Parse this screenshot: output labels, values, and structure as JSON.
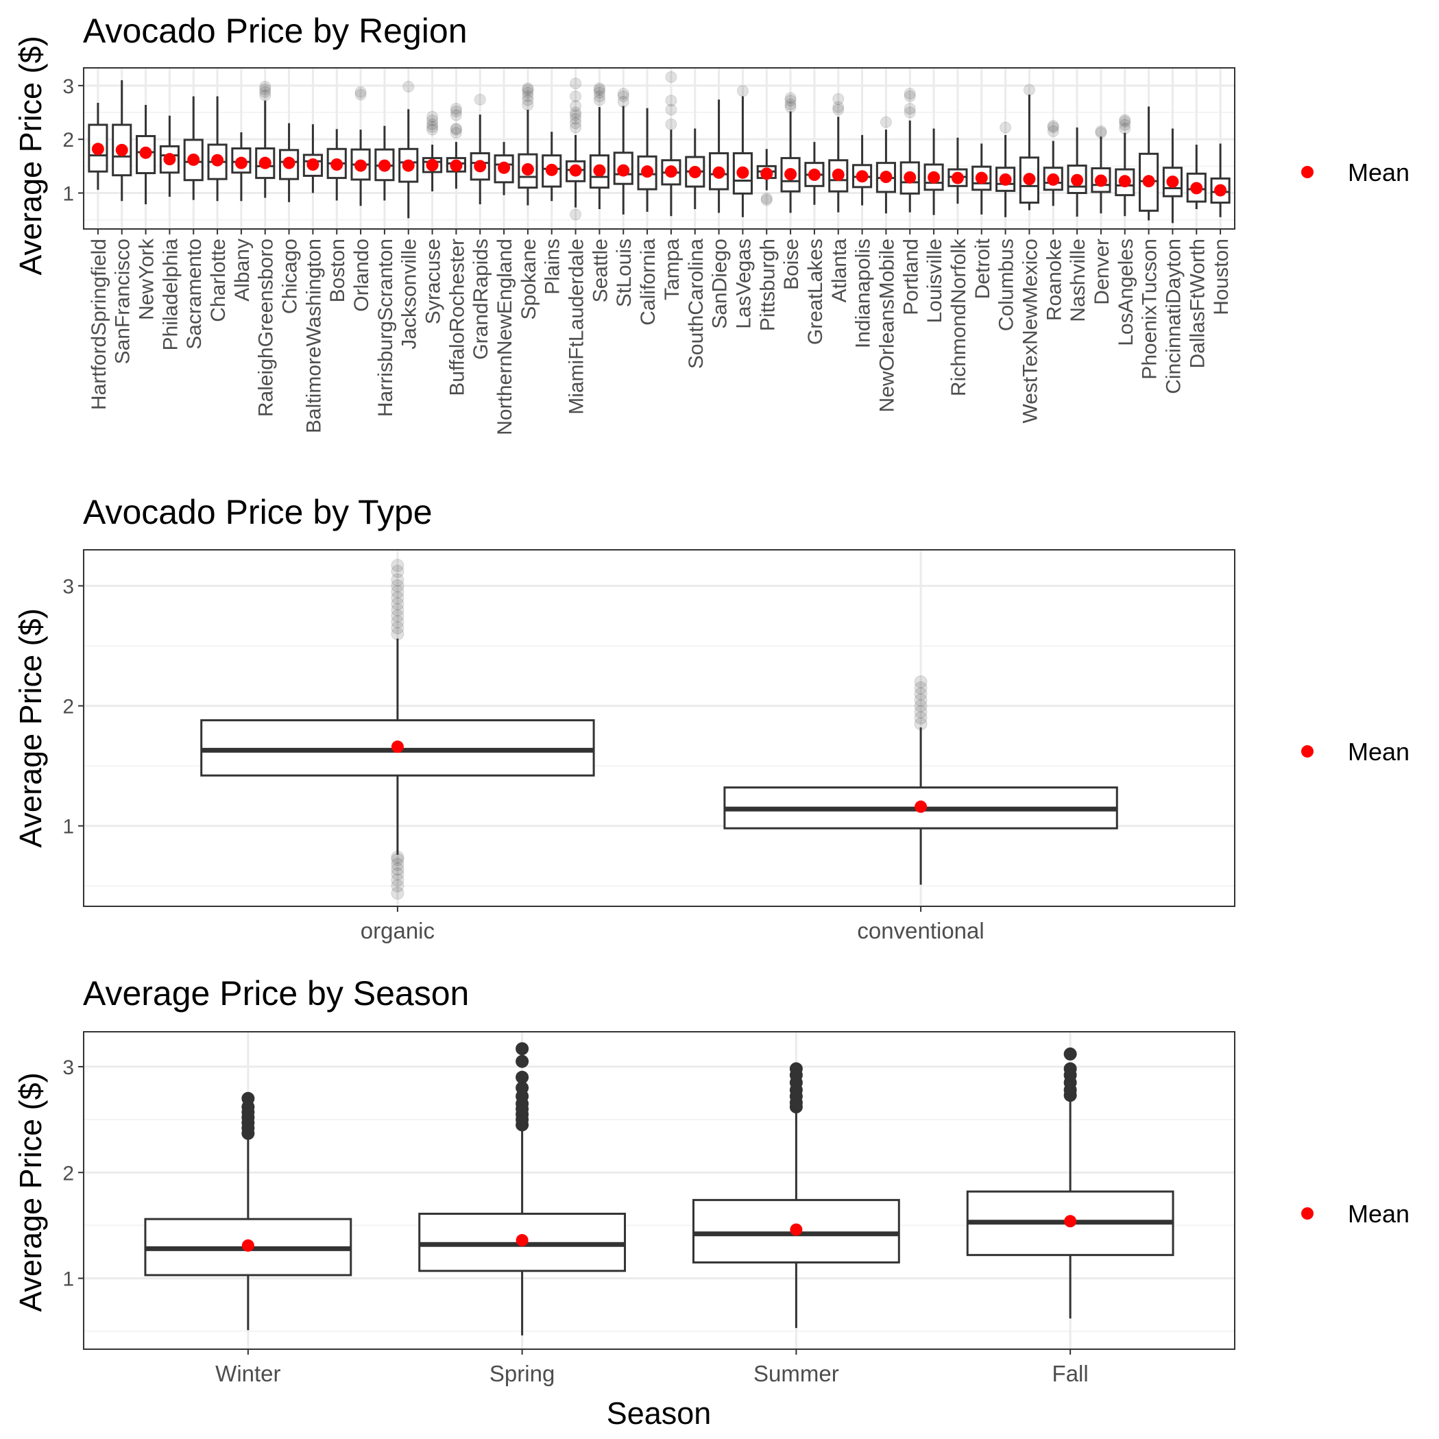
{
  "colors": {
    "panel_border": "#333333",
    "grid_major": "#ebebeb",
    "grid_minor": "#f4f4f4",
    "box_stroke": "#333333",
    "mean_point": "#ff0000",
    "tick_text": "#4d4d4d",
    "title_text": "#000000"
  },
  "legend": {
    "label": "Mean",
    "icon": "red-dot-icon"
  },
  "chart_data": [
    {
      "type": "boxplot",
      "title": "Avocado Price by Region",
      "ylabel": "Average Price ($)",
      "xlabel": "",
      "ylim": [
        0.33,
        3.33
      ],
      "yticks": [
        1,
        2,
        3
      ],
      "grid": true,
      "legend_position": "right",
      "outlier_style": "translucent",
      "x_tick_rotation": "vertical",
      "series": [
        {
          "name": "Mean"
        }
      ],
      "categories": [
        "HartfordSpringfield",
        "SanFrancisco",
        "NewYork",
        "Philadelphia",
        "Sacramento",
        "Charlotte",
        "Albany",
        "RaleighGreensboro",
        "Chicago",
        "BaltimoreWashington",
        "Boston",
        "Orlando",
        "HarrisburgScranton",
        "Jacksonville",
        "Syracuse",
        "BuffaloRochester",
        "GrandRapids",
        "NorthernNewEngland",
        "Spokane",
        "Plains",
        "MiamiFtLauderdale",
        "Seattle",
        "StLouis",
        "California",
        "Tampa",
        "SouthCarolina",
        "SanDiego",
        "LasVegas",
        "Pittsburgh",
        "Boise",
        "GreatLakes",
        "Atlanta",
        "Indianapolis",
        "NewOrleansMobile",
        "Portland",
        "Louisville",
        "RichmondNorfolk",
        "Detroit",
        "Columbus",
        "WestTexNewMexico",
        "Roanoke",
        "Nashville",
        "Denver",
        "LosAngeles",
        "PhoenixTucson",
        "CincinnatiDayton",
        "DallasFtWorth",
        "Houston"
      ],
      "boxes": [
        {
          "min": 1.06,
          "q1": 1.4,
          "median": 1.7,
          "q3": 2.27,
          "max": 2.68,
          "mean": 1.82,
          "outliers": []
        },
        {
          "min": 0.85,
          "q1": 1.33,
          "median": 1.68,
          "q3": 2.27,
          "max": 3.1,
          "mean": 1.8,
          "outliers": []
        },
        {
          "min": 0.79,
          "q1": 1.37,
          "median": 1.76,
          "q3": 2.06,
          "max": 2.64,
          "mean": 1.75,
          "outliers": []
        },
        {
          "min": 0.93,
          "q1": 1.38,
          "median": 1.7,
          "q3": 1.87,
          "max": 2.44,
          "mean": 1.63,
          "outliers": []
        },
        {
          "min": 0.87,
          "q1": 1.24,
          "median": 1.58,
          "q3": 1.99,
          "max": 2.8,
          "mean": 1.62,
          "outliers": []
        },
        {
          "min": 0.85,
          "q1": 1.26,
          "median": 1.58,
          "q3": 1.9,
          "max": 2.8,
          "mean": 1.61,
          "outliers": []
        },
        {
          "min": 0.85,
          "q1": 1.38,
          "median": 1.58,
          "q3": 1.83,
          "max": 2.13,
          "mean": 1.56,
          "outliers": []
        },
        {
          "min": 0.91,
          "q1": 1.28,
          "median": 1.5,
          "q3": 1.83,
          "max": 2.72,
          "mean": 1.56,
          "outliers": [
            2.82,
            2.88,
            2.93,
            2.98
          ]
        },
        {
          "min": 0.83,
          "q1": 1.26,
          "median": 1.58,
          "q3": 1.8,
          "max": 2.3,
          "mean": 1.56,
          "outliers": []
        },
        {
          "min": 1.0,
          "q1": 1.32,
          "median": 1.59,
          "q3": 1.71,
          "max": 2.28,
          "mean": 1.53,
          "outliers": []
        },
        {
          "min": 0.86,
          "q1": 1.28,
          "median": 1.55,
          "q3": 1.82,
          "max": 2.19,
          "mean": 1.53,
          "outliers": []
        },
        {
          "min": 0.76,
          "q1": 1.25,
          "median": 1.53,
          "q3": 1.81,
          "max": 2.18,
          "mean": 1.51,
          "outliers": [
            2.83,
            2.88
          ]
        },
        {
          "min": 0.86,
          "q1": 1.24,
          "median": 1.51,
          "q3": 1.81,
          "max": 2.25,
          "mean": 1.51,
          "outliers": []
        },
        {
          "min": 0.53,
          "q1": 1.21,
          "median": 1.57,
          "q3": 1.82,
          "max": 2.56,
          "mean": 1.51,
          "outliers": [
            2.98
          ]
        },
        {
          "min": 1.03,
          "q1": 1.39,
          "median": 1.58,
          "q3": 1.65,
          "max": 1.9,
          "mean": 1.52,
          "outliers": [
            2.18,
            2.23,
            2.28,
            2.35,
            2.42
          ]
        },
        {
          "min": 1.08,
          "q1": 1.4,
          "median": 1.55,
          "q3": 1.65,
          "max": 1.95,
          "mean": 1.51,
          "outliers": [
            2.12,
            2.18,
            2.2,
            2.45,
            2.52,
            2.57
          ]
        },
        {
          "min": 0.79,
          "q1": 1.25,
          "median": 1.56,
          "q3": 1.74,
          "max": 2.46,
          "mean": 1.5,
          "outliers": [
            2.74
          ]
        },
        {
          "min": 0.96,
          "q1": 1.2,
          "median": 1.53,
          "q3": 1.7,
          "max": 1.95,
          "mean": 1.47,
          "outliers": []
        },
        {
          "min": 0.77,
          "q1": 1.1,
          "median": 1.3,
          "q3": 1.72,
          "max": 2.55,
          "mean": 1.44,
          "outliers": [
            2.64,
            2.73,
            2.8,
            2.87,
            2.92,
            2.95
          ]
        },
        {
          "min": 0.85,
          "q1": 1.12,
          "median": 1.45,
          "q3": 1.7,
          "max": 2.14,
          "mean": 1.43,
          "outliers": []
        },
        {
          "min": 0.73,
          "q1": 1.22,
          "median": 1.43,
          "q3": 1.59,
          "max": 2.08,
          "mean": 1.42,
          "outliers": [
            0.6,
            2.22,
            2.3,
            2.38,
            2.45,
            2.5,
            2.62,
            2.8,
            3.04
          ]
        },
        {
          "min": 0.7,
          "q1": 1.1,
          "median": 1.3,
          "q3": 1.7,
          "max": 2.6,
          "mean": 1.42,
          "outliers": [
            2.73,
            2.8,
            2.87,
            2.92,
            2.95
          ]
        },
        {
          "min": 0.6,
          "q1": 1.17,
          "median": 1.35,
          "q3": 1.75,
          "max": 2.62,
          "mean": 1.42,
          "outliers": [
            2.7,
            2.8,
            2.85
          ]
        },
        {
          "min": 0.65,
          "q1": 1.07,
          "median": 1.35,
          "q3": 1.68,
          "max": 2.58,
          "mean": 1.4,
          "outliers": []
        },
        {
          "min": 0.57,
          "q1": 1.16,
          "median": 1.38,
          "q3": 1.61,
          "max": 2.18,
          "mean": 1.4,
          "outliers": [
            2.28,
            2.55,
            2.72,
            3.16
          ]
        },
        {
          "min": 0.7,
          "q1": 1.12,
          "median": 1.4,
          "q3": 1.67,
          "max": 2.2,
          "mean": 1.39,
          "outliers": []
        },
        {
          "min": 0.63,
          "q1": 1.07,
          "median": 1.35,
          "q3": 1.74,
          "max": 2.74,
          "mean": 1.38,
          "outliers": []
        },
        {
          "min": 0.55,
          "q1": 0.99,
          "median": 1.23,
          "q3": 1.74,
          "max": 2.8,
          "mean": 1.38,
          "outliers": [
            2.9
          ]
        },
        {
          "min": 1.05,
          "q1": 1.28,
          "median": 1.4,
          "q3": 1.5,
          "max": 1.82,
          "mean": 1.36,
          "outliers": [
            0.87,
            0.9
          ]
        },
        {
          "min": 0.63,
          "q1": 1.03,
          "median": 1.22,
          "q3": 1.65,
          "max": 2.52,
          "mean": 1.35,
          "outliers": [
            2.6,
            2.65,
            2.72,
            2.77
          ]
        },
        {
          "min": 0.78,
          "q1": 1.13,
          "median": 1.34,
          "q3": 1.56,
          "max": 1.95,
          "mean": 1.34,
          "outliers": []
        },
        {
          "min": 0.64,
          "q1": 1.03,
          "median": 1.24,
          "q3": 1.61,
          "max": 2.42,
          "mean": 1.34,
          "outliers": [
            2.55,
            2.6,
            2.75
          ]
        },
        {
          "min": 0.77,
          "q1": 1.11,
          "median": 1.3,
          "q3": 1.52,
          "max": 2.08,
          "mean": 1.31,
          "outliers": []
        },
        {
          "min": 0.62,
          "q1": 1.02,
          "median": 1.28,
          "q3": 1.56,
          "max": 2.18,
          "mean": 1.3,
          "outliers": [
            2.32
          ]
        },
        {
          "min": 0.64,
          "q1": 0.99,
          "median": 1.2,
          "q3": 1.57,
          "max": 2.35,
          "mean": 1.29,
          "outliers": [
            2.5,
            2.57,
            2.8,
            2.85
          ]
        },
        {
          "min": 0.59,
          "q1": 1.06,
          "median": 1.19,
          "q3": 1.53,
          "max": 2.2,
          "mean": 1.29,
          "outliers": []
        },
        {
          "min": 0.8,
          "q1": 1.13,
          "median": 1.3,
          "q3": 1.44,
          "max": 2.03,
          "mean": 1.28,
          "outliers": []
        },
        {
          "min": 0.6,
          "q1": 1.06,
          "median": 1.18,
          "q3": 1.49,
          "max": 1.92,
          "mean": 1.28,
          "outliers": []
        },
        {
          "min": 0.55,
          "q1": 1.04,
          "median": 1.17,
          "q3": 1.47,
          "max": 2.08,
          "mean": 1.25,
          "outliers": [
            2.22
          ]
        },
        {
          "min": 0.68,
          "q1": 0.82,
          "median": 1.13,
          "q3": 1.66,
          "max": 2.83,
          "mean": 1.26,
          "outliers": [
            2.92
          ]
        },
        {
          "min": 0.76,
          "q1": 1.06,
          "median": 1.19,
          "q3": 1.47,
          "max": 1.97,
          "mean": 1.25,
          "outliers": [
            2.15,
            2.22,
            2.25
          ]
        },
        {
          "min": 0.56,
          "q1": 1.0,
          "median": 1.12,
          "q3": 1.51,
          "max": 2.22,
          "mean": 1.24,
          "outliers": []
        },
        {
          "min": 0.62,
          "q1": 1.02,
          "median": 1.15,
          "q3": 1.46,
          "max": 2.05,
          "mean": 1.23,
          "outliers": [
            2.12,
            2.15
          ]
        },
        {
          "min": 0.57,
          "q1": 0.96,
          "median": 1.14,
          "q3": 1.44,
          "max": 2.12,
          "mean": 1.22,
          "outliers": [
            2.2,
            2.27,
            2.33,
            2.36
          ]
        },
        {
          "min": 0.49,
          "q1": 0.67,
          "median": 1.22,
          "q3": 1.73,
          "max": 2.61,
          "mean": 1.22,
          "outliers": []
        },
        {
          "min": 0.44,
          "q1": 0.94,
          "median": 1.09,
          "q3": 1.47,
          "max": 2.2,
          "mean": 1.21,
          "outliers": []
        },
        {
          "min": 0.7,
          "q1": 0.84,
          "median": 1.07,
          "q3": 1.36,
          "max": 1.9,
          "mean": 1.09,
          "outliers": []
        },
        {
          "min": 0.55,
          "q1": 0.82,
          "median": 1.02,
          "q3": 1.27,
          "max": 1.92,
          "mean": 1.05,
          "outliers": []
        }
      ]
    },
    {
      "type": "boxplot",
      "title": "Avocado Price by Type",
      "ylabel": "Average Price ($)",
      "xlabel": "",
      "ylim": [
        0.33,
        3.3
      ],
      "yticks": [
        1,
        2,
        3
      ],
      "grid": true,
      "legend_position": "right",
      "outlier_style": "translucent",
      "x_tick_rotation": "horizontal",
      "series": [
        {
          "name": "Mean"
        }
      ],
      "categories": [
        "organic",
        "conventional"
      ],
      "boxes": [
        {
          "min": 0.76,
          "q1": 1.42,
          "median": 1.63,
          "q3": 1.88,
          "max": 2.56,
          "mean": 1.66,
          "outliers": [
            0.44,
            0.5,
            0.55,
            0.6,
            0.64,
            0.68,
            0.72,
            0.74,
            2.6,
            2.65,
            2.7,
            2.75,
            2.8,
            2.85,
            2.9,
            2.95,
            3.0,
            3.05,
            3.12,
            3.17
          ]
        },
        {
          "min": 0.51,
          "q1": 0.98,
          "median": 1.14,
          "q3": 1.32,
          "max": 1.82,
          "mean": 1.16,
          "outliers": [
            1.85,
            1.9,
            1.95,
            2.0,
            2.05,
            2.1,
            2.15,
            2.2
          ]
        }
      ]
    },
    {
      "type": "boxplot",
      "title": "Average Price by Season",
      "ylabel": "Average Price ($)",
      "xlabel": "Season",
      "ylim": [
        0.33,
        3.33
      ],
      "yticks": [
        1,
        2,
        3
      ],
      "grid": true,
      "legend_position": "right",
      "outlier_style": "solid",
      "x_tick_rotation": "horizontal",
      "series": [
        {
          "name": "Mean"
        }
      ],
      "categories": [
        "Winter",
        "Spring",
        "Summer",
        "Fall"
      ],
      "boxes": [
        {
          "min": 0.51,
          "q1": 1.03,
          "median": 1.28,
          "q3": 1.56,
          "max": 2.34,
          "mean": 1.31,
          "outliers": [
            2.37,
            2.42,
            2.47,
            2.52,
            2.57,
            2.62,
            2.7
          ]
        },
        {
          "min": 0.46,
          "q1": 1.07,
          "median": 1.32,
          "q3": 1.61,
          "max": 2.41,
          "mean": 1.36,
          "outliers": [
            2.45,
            2.5,
            2.55,
            2.6,
            2.65,
            2.72,
            2.8,
            2.9,
            3.05,
            3.17
          ]
        },
        {
          "min": 0.53,
          "q1": 1.15,
          "median": 1.42,
          "q3": 1.74,
          "max": 2.59,
          "mean": 1.46,
          "outliers": [
            2.62,
            2.66,
            2.72,
            2.78,
            2.85,
            2.92,
            2.98
          ]
        },
        {
          "min": 0.62,
          "q1": 1.22,
          "median": 1.53,
          "q3": 1.82,
          "max": 2.7,
          "mean": 1.54,
          "outliers": [
            2.73,
            2.78,
            2.85,
            2.92,
            2.98,
            3.12
          ]
        }
      ]
    }
  ]
}
